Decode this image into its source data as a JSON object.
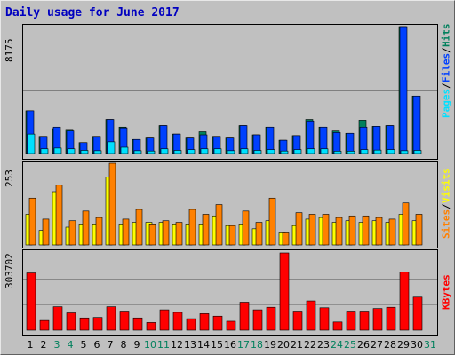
{
  "title": "Daily usage for June 2017",
  "colors": {
    "hits": "#00805c",
    "files": "#0040ff",
    "pages": "#00e0ff",
    "visits": "#ffff00",
    "sites": "#ff8000",
    "kbytes": "#ff0000",
    "weekday": "#000000",
    "weekend": "#00805c",
    "grid": "#808080"
  },
  "chart_data": [
    {
      "type": "bar",
      "ymax_label": "8175",
      "ylim": [
        0,
        8175
      ],
      "legend": [
        "Pages",
        "Files",
        "Hits"
      ],
      "categories": [
        "1",
        "2",
        "3",
        "4",
        "5",
        "6",
        "7",
        "8",
        "9",
        "10",
        "11",
        "12",
        "13",
        "14",
        "15",
        "16",
        "17",
        "18",
        "19",
        "20",
        "21",
        "22",
        "23",
        "24",
        "25",
        "26",
        "27",
        "28",
        "29",
        "30",
        "31"
      ],
      "series": [
        {
          "name": "Hits",
          "values": [
            2750,
            1100,
            1600,
            1550,
            700,
            1100,
            2200,
            1700,
            900,
            1050,
            1800,
            1250,
            1050,
            1400,
            1100,
            1050,
            1800,
            1200,
            1700,
            850,
            1150,
            2200,
            1700,
            1450,
            1300,
            2150,
            1750,
            1800,
            8175,
            3700,
            null
          ]
        },
        {
          "name": "Files",
          "values": [
            2750,
            1100,
            1700,
            1450,
            700,
            1100,
            2200,
            1650,
            900,
            1050,
            1800,
            1250,
            1050,
            1200,
            1100,
            1050,
            1800,
            1200,
            1700,
            850,
            1150,
            2100,
            1700,
            1350,
            1300,
            1700,
            1750,
            1800,
            8175,
            3700,
            null
          ]
        },
        {
          "name": "Pages",
          "values": [
            1250,
            300,
            350,
            300,
            200,
            180,
            750,
            400,
            180,
            160,
            300,
            200,
            250,
            300,
            300,
            180,
            300,
            200,
            250,
            160,
            250,
            300,
            300,
            150,
            150,
            250,
            220,
            250,
            180,
            200,
            null
          ]
        }
      ]
    },
    {
      "type": "bar",
      "ymax_label": "253",
      "ylim": [
        0,
        253
      ],
      "legend": [
        "Sites",
        "Visits"
      ],
      "categories": [
        "1",
        "2",
        "3",
        "4",
        "5",
        "6",
        "7",
        "8",
        "9",
        "10",
        "11",
        "12",
        "13",
        "14",
        "15",
        "16",
        "17",
        "18",
        "19",
        "20",
        "21",
        "22",
        "23",
        "24",
        "25",
        "26",
        "27",
        "28",
        "29",
        "30",
        "31"
      ],
      "series": [
        {
          "name": "Visits",
          "values": [
            95,
            45,
            165,
            55,
            65,
            65,
            210,
            65,
            70,
            70,
            70,
            65,
            65,
            65,
            90,
            60,
            65,
            50,
            75,
            40,
            60,
            80,
            85,
            70,
            75,
            70,
            75,
            70,
            95,
            75,
            null
          ]
        },
        {
          "name": "Sites",
          "values": [
            145,
            80,
            185,
            75,
            105,
            85,
            253,
            80,
            110,
            65,
            75,
            70,
            110,
            95,
            125,
            60,
            105,
            70,
            145,
            40,
            100,
            95,
            95,
            85,
            90,
            90,
            85,
            80,
            130,
            95,
            null
          ]
        }
      ]
    },
    {
      "type": "bar",
      "ymax_label": "303702",
      "ylim": [
        0,
        303702
      ],
      "legend": [
        "KBytes"
      ],
      "categories": [
        "1",
        "2",
        "3",
        "4",
        "5",
        "6",
        "7",
        "8",
        "9",
        "10",
        "11",
        "12",
        "13",
        "14",
        "15",
        "16",
        "17",
        "18",
        "19",
        "20",
        "21",
        "22",
        "23",
        "24",
        "25",
        "26",
        "27",
        "28",
        "29",
        "30",
        "31"
      ],
      "series": [
        {
          "name": "KBytes",
          "values": [
            225000,
            38000,
            92000,
            68000,
            48000,
            50000,
            92000,
            75000,
            48000,
            30000,
            80000,
            70000,
            45000,
            65000,
            55000,
            35000,
            110000,
            80000,
            90000,
            303702,
            75000,
            115000,
            88000,
            32000,
            75000,
            75000,
            85000,
            90000,
            228000,
            130000,
            null
          ]
        }
      ]
    }
  ],
  "days": [
    {
      "label": "1",
      "weekend": false
    },
    {
      "label": "2",
      "weekend": false
    },
    {
      "label": "3",
      "weekend": true
    },
    {
      "label": "4",
      "weekend": true
    },
    {
      "label": "5",
      "weekend": false
    },
    {
      "label": "6",
      "weekend": false
    },
    {
      "label": "7",
      "weekend": false
    },
    {
      "label": "8",
      "weekend": false
    },
    {
      "label": "9",
      "weekend": false
    },
    {
      "label": "10",
      "weekend": true
    },
    {
      "label": "11",
      "weekend": true
    },
    {
      "label": "12",
      "weekend": false
    },
    {
      "label": "13",
      "weekend": false
    },
    {
      "label": "14",
      "weekend": false
    },
    {
      "label": "15",
      "weekend": false
    },
    {
      "label": "16",
      "weekend": false
    },
    {
      "label": "17",
      "weekend": true
    },
    {
      "label": "18",
      "weekend": true
    },
    {
      "label": "19",
      "weekend": false
    },
    {
      "label": "20",
      "weekend": false
    },
    {
      "label": "21",
      "weekend": false
    },
    {
      "label": "22",
      "weekend": false
    },
    {
      "label": "23",
      "weekend": false
    },
    {
      "label": "24",
      "weekend": true
    },
    {
      "label": "25",
      "weekend": true
    },
    {
      "label": "26",
      "weekend": false
    },
    {
      "label": "27",
      "weekend": false
    },
    {
      "label": "28",
      "weekend": false
    },
    {
      "label": "29",
      "weekend": false
    },
    {
      "label": "30",
      "weekend": false
    },
    {
      "label": "31",
      "weekend": true
    }
  ]
}
